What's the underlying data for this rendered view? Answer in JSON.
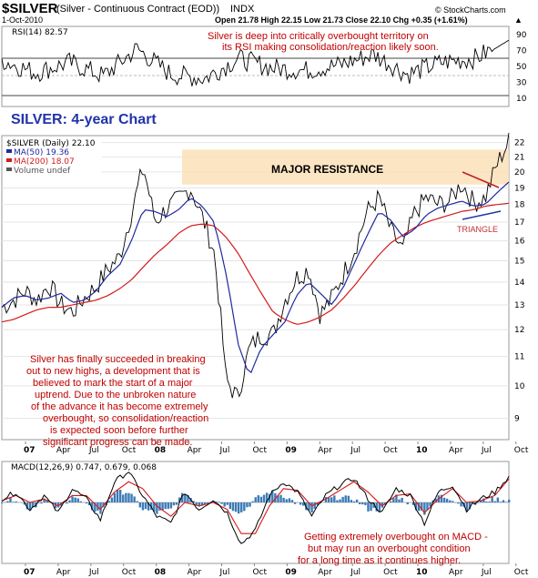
{
  "header": {
    "symbol": "$SILVER",
    "description": "(Silver - Continuous Contract (EOD))",
    "exchange": "INDX",
    "date": "1-Oct-2010",
    "quote": "Open 21.78  High 22.15  Low 21.73  Close 22.10  Chg +0.35 (+1.61%)",
    "quote_arrow": "▲",
    "watermark": "© StockCharts.com"
  },
  "colors": {
    "price": "#000000",
    "ma50": "#1f2aa0",
    "ma200": "#d41a1a",
    "resistance_fill": "#fbe1b8",
    "rsi_line": "#000000",
    "macd_line": "#000000",
    "macd_signal": "#d41a1a",
    "macd_hist": "#3c7bb6",
    "annotation": "#c00000",
    "title_blue": "#2233aa"
  },
  "chart_data": [
    {
      "type": "line",
      "panel": "rsi",
      "title": "RSI(14) 82.57",
      "y_ticks": [
        10,
        30,
        50,
        70,
        90
      ],
      "ylim": [
        0,
        100
      ],
      "reference_lines": [
        30,
        50,
        70
      ],
      "x": [
        "07",
        "Apr",
        "Jul",
        "Oct",
        "08",
        "Apr",
        "Jul",
        "Oct",
        "09",
        "Apr",
        "Jul",
        "Oct",
        "10",
        "Apr",
        "Jul",
        "Oct"
      ],
      "series": [
        {
          "values": [
            58,
            42,
            55,
            38,
            72,
            40,
            35,
            60,
            48,
            45,
            52,
            65,
            40,
            55,
            60,
            82.57
          ]
        }
      ]
    },
    {
      "type": "line",
      "panel": "price",
      "title": "$SILVER (Daily) 22.10",
      "legend": [
        {
          "name": "MA(50) 19.36",
          "color": "#1f2aa0"
        },
        {
          "name": "MA(200) 18.07",
          "color": "#d41a1a"
        },
        {
          "name": "Volume undef",
          "color": "#555555"
        }
      ],
      "y_ticks": [
        9,
        10,
        11,
        12,
        13,
        14,
        15,
        16,
        17,
        18,
        19,
        20,
        21,
        22
      ],
      "log_scale": true,
      "ylim": [
        8.4,
        22.5
      ],
      "x_labels": [
        "07",
        "Apr",
        "Jul",
        "Oct",
        "08",
        "Apr",
        "Jul",
        "Oct",
        "09",
        "Apr",
        "Jul",
        "Oct",
        "10",
        "Apr",
        "Jul",
        "Oct"
      ],
      "series": [
        {
          "values": [
            12.9,
            13.2,
            13.6,
            13.2,
            13.9,
            13.0,
            12.7,
            13.3,
            13.8,
            14.6,
            15.2,
            17.5,
            20.3,
            17.0,
            17.8,
            18.3,
            19.0,
            17.3,
            15.4,
            10.2,
            9.6,
            11.3,
            11.8,
            11.8,
            13.2,
            14.2,
            14.6,
            12.6,
            13.3,
            14.4,
            15.7,
            17.6,
            18.4,
            16.5,
            15.5,
            17.5,
            18.4,
            18.0,
            18.2,
            19.3,
            18.1,
            18.4,
            20.5,
            22.1
          ]
        },
        {
          "name": "MA(50) 19.36",
          "values": [
            12.9,
            13.3,
            13.4,
            13.2,
            13.3,
            13.5,
            13.1,
            13.2,
            13.6,
            14.3,
            14.8,
            16.0,
            17.7,
            17.6,
            17.3,
            17.7,
            18.4,
            17.9,
            17.0,
            14.4,
            11.5,
            10.3,
            11.3,
            11.8,
            12.3,
            13.4,
            14.0,
            13.5,
            13.0,
            13.8,
            15.0,
            16.3,
            17.6,
            17.1,
            16.2,
            16.6,
            17.4,
            17.8,
            18.0,
            18.2,
            17.9,
            18.0,
            18.7,
            19.36
          ]
        },
        {
          "name": "MA(200) 18.07",
          "values": [
            12.3,
            12.4,
            12.6,
            12.8,
            12.9,
            12.9,
            13.0,
            13.1,
            13.2,
            13.4,
            13.7,
            14.1,
            14.7,
            15.3,
            15.8,
            16.4,
            16.8,
            16.9,
            16.8,
            16.2,
            15.4,
            14.4,
            13.5,
            12.7,
            12.4,
            12.2,
            12.3,
            12.5,
            12.8,
            13.3,
            13.9,
            14.6,
            15.3,
            15.9,
            16.3,
            16.7,
            17.0,
            17.2,
            17.4,
            17.6,
            17.7,
            17.9,
            18.0,
            18.07
          ]
        }
      ]
    },
    {
      "type": "line",
      "panel": "macd",
      "title": "MACD(12,26,9) 0.747, 0.679, 0.068",
      "x_labels": [
        "07",
        "Apr",
        "Jul",
        "Oct",
        "08",
        "Apr",
        "Jul",
        "Oct",
        "09",
        "Apr",
        "Jul",
        "Oct",
        "10",
        "Apr",
        "Jul",
        "Oct"
      ],
      "series": [
        {
          "name": "MACD",
          "values": [
            0.1,
            0.3,
            -0.2,
            0.2,
            -0.3,
            0.4,
            0.1,
            -0.5,
            0.6,
            0.9,
            0.2,
            -0.4,
            -0.6,
            0.3,
            -0.2,
            0.1,
            -0.3,
            -1.2,
            -0.8,
            0.2,
            0.6,
            0.3,
            -0.4,
            0.2,
            0.5,
            0.7,
            0.1,
            -0.3,
            0.4,
            0.2,
            -0.6,
            0.3,
            0.5,
            -0.2,
            0.1,
            0.3,
            0.747
          ]
        },
        {
          "name": "Signal",
          "values": [
            0.05,
            0.2,
            0.0,
            0.1,
            -0.1,
            0.2,
            0.2,
            -0.2,
            0.3,
            0.6,
            0.4,
            -0.1,
            -0.4,
            0.0,
            -0.1,
            0.0,
            -0.2,
            -0.9,
            -0.9,
            -0.1,
            0.4,
            0.35,
            -0.1,
            0.1,
            0.35,
            0.6,
            0.3,
            -0.1,
            0.2,
            0.25,
            -0.3,
            0.1,
            0.4,
            0.0,
            0.05,
            0.2,
            0.679
          ]
        }
      ]
    }
  ],
  "annotations": {
    "chart_title": "SILVER: 4-year Chart",
    "resistance_label": "MAJOR RESISTANCE",
    "triangle_label": "TRIANGLE",
    "rsi_note": [
      "Silver is deep into critically overbought territory on",
      "its RSI making consolidation/reaction likely soon."
    ],
    "main_note": [
      "Silver has finally succeeded in breaking",
      "out to new highs, a development that is",
      "believed to mark the start of a major",
      "uptrend. Due to the unbroken nature",
      "of the advance it has become extremely",
      "overbought, so consolidation/reaction",
      "is expected soon before further",
      "significant progress can be made."
    ],
    "macd_note": [
      "Getting extremely overbought on MACD -",
      "but may run an overbought condition",
      "for a long time as it continues higher."
    ]
  }
}
